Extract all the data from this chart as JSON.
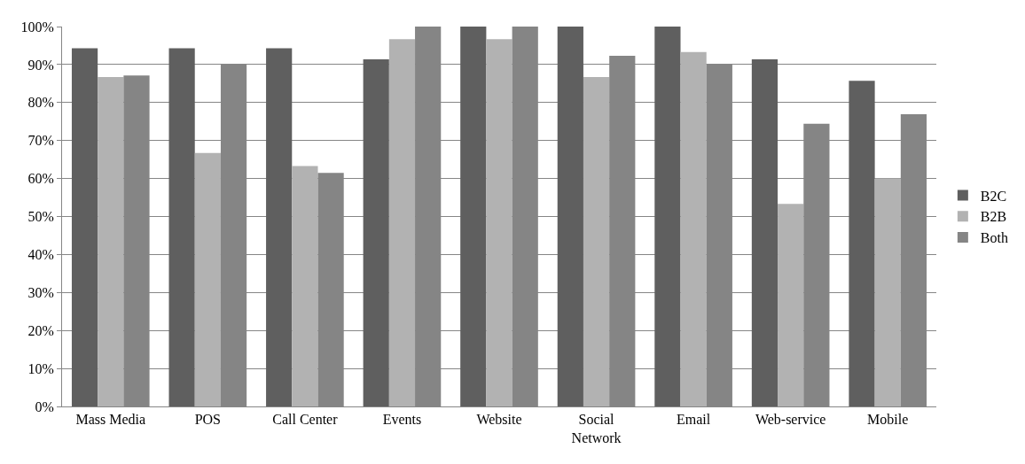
{
  "chart_data": {
    "type": "bar",
    "categories": [
      "Mass Media",
      "POS",
      "Call Center",
      "Events",
      "Website",
      "Social\nNetwork",
      "Email",
      "Web-service",
      "Mobile"
    ],
    "series": [
      {
        "name": "B2C",
        "color": "#5f5f5f",
        "values": [
          94.3,
          94.3,
          94.3,
          91.4,
          100,
          100,
          100,
          91.4,
          85.7
        ]
      },
      {
        "name": "B2B",
        "color": "#b2b2b2",
        "values": [
          86.7,
          66.7,
          63.3,
          96.7,
          96.7,
          86.7,
          93.3,
          53.3,
          60
        ]
      },
      {
        "name": "Both",
        "color": "#858585",
        "values": [
          87.1,
          90,
          61.5,
          100,
          100,
          92.3,
          90,
          74.4,
          76.9
        ]
      }
    ],
    "ylim": [
      0,
      100
    ],
    "yticks": [
      {
        "value": 0,
        "label": "0%"
      },
      {
        "value": 10,
        "label": "10%"
      },
      {
        "value": 20,
        "label": "20%"
      },
      {
        "value": 30,
        "label": "30%"
      },
      {
        "value": 40,
        "label": "40%"
      },
      {
        "value": 50,
        "label": "50%"
      },
      {
        "value": 60,
        "label": "60%"
      },
      {
        "value": 70,
        "label": "70%"
      },
      {
        "value": 80,
        "label": "80%"
      },
      {
        "value": 90,
        "label": "90%"
      },
      {
        "value": 100,
        "label": "100%"
      }
    ],
    "grid": "y",
    "legend": "right"
  }
}
